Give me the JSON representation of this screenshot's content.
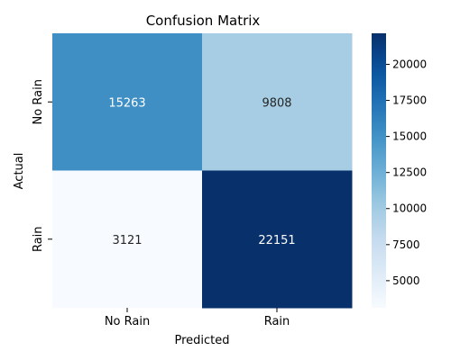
{
  "chart_data": {
    "type": "heatmap",
    "title": "Confusion Matrix",
    "xlabel": "Predicted",
    "ylabel": "Actual",
    "x_categories": [
      "No Rain",
      "Rain"
    ],
    "y_categories": [
      "No Rain",
      "Rain"
    ],
    "values": [
      [
        15263,
        9808
      ],
      [
        3121,
        22151
      ]
    ],
    "colorscale": "Blues",
    "colorbar": {
      "range": [
        3121,
        22151
      ],
      "ticks": [
        5000,
        7500,
        10000,
        12500,
        15000,
        17500,
        20000
      ]
    },
    "colors": {
      "low": "#f7fbff",
      "high": "#08306b",
      "text_light": "#ffffff",
      "text_dark": "#262626"
    }
  }
}
